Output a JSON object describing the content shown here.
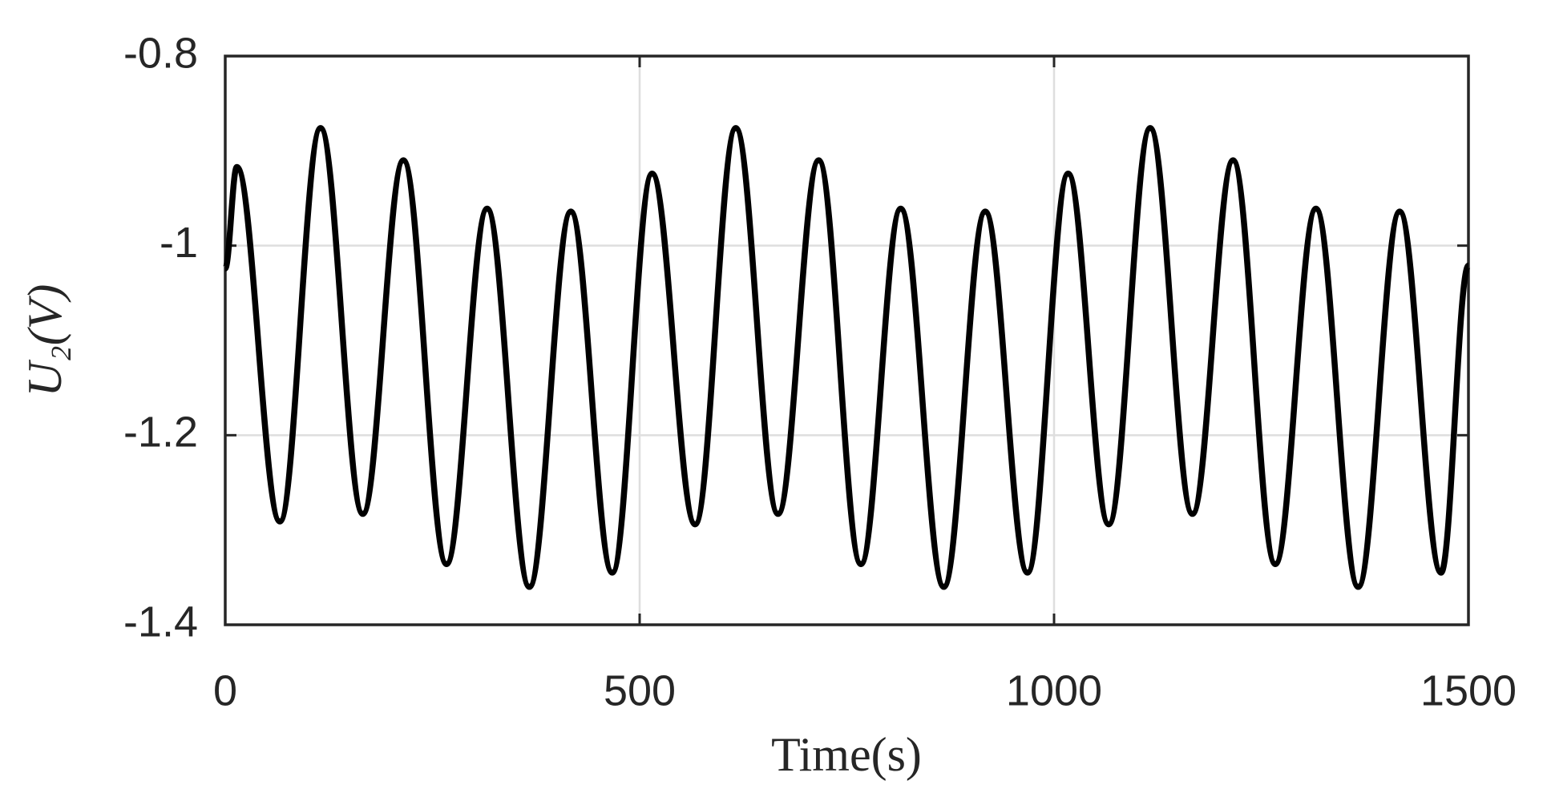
{
  "chart_data": {
    "type": "line",
    "xlabel": "Time(s)",
    "ylabel": "U₂(V)",
    "x": [
      0,
      14,
      66,
      115,
      166,
      215,
      267,
      316,
      367,
      417,
      467,
      515,
      567,
      616,
      667,
      716,
      767,
      815,
      867,
      917,
      968,
      1017,
      1066,
      1116,
      1167,
      1216,
      1267,
      1316,
      1367,
      1417,
      1467,
      1500
    ],
    "series": [
      {
        "name": "U2",
        "color": "#000000",
        "values": [
          -1.024,
          -0.917,
          -1.291,
          -0.876,
          -1.283,
          -0.91,
          -1.336,
          -0.961,
          -1.36,
          -0.964,
          -1.345,
          -0.924,
          -1.294,
          -0.876,
          -1.283,
          -0.91,
          -1.336,
          -0.961,
          -1.36,
          -0.964,
          -1.345,
          -0.924,
          -1.294,
          -0.876,
          -1.283,
          -0.91,
          -1.336,
          -0.961,
          -1.36,
          -0.964,
          -1.345,
          -1.021
        ]
      }
    ],
    "xlim": [
      0,
      1500
    ],
    "xticks": [
      0,
      500,
      1000,
      1500
    ],
    "ylim": [
      -1.4,
      -0.8
    ],
    "yticks": [
      -1.4,
      -1.2,
      -1,
      -0.8
    ],
    "grid": true
  }
}
